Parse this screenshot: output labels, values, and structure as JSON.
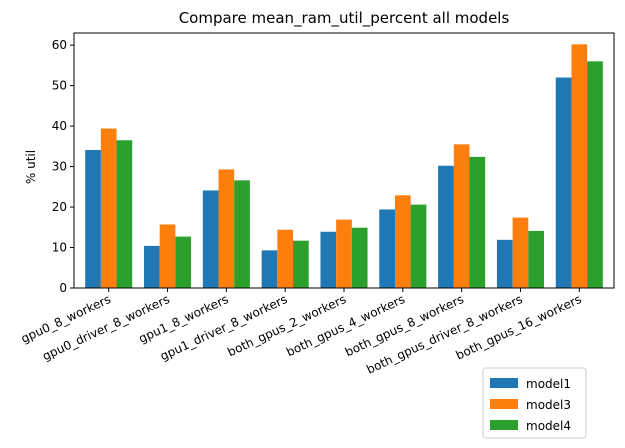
{
  "chart_data": {
    "type": "bar",
    "title": "Compare mean_ram_util_percent all models",
    "xlabel": "",
    "ylabel": "% util",
    "ylim": [
      0,
      63
    ],
    "yticks": [
      0,
      10,
      20,
      30,
      40,
      50,
      60
    ],
    "grid": false,
    "legend_placement": "bottom-right, below plot",
    "categories": [
      "gpu0_8_workers",
      "gpu0_driver_8_workers",
      "gpu1_8_workers",
      "gpu1_driver_8_workers",
      "both_gpus_2_workers",
      "both_gpus_4_workers",
      "both_gpus_8_workers",
      "both_gpus_driver_8_workers",
      "both_gpus_16_workers"
    ],
    "series": [
      {
        "name": "model1",
        "color": "#1f77b4",
        "values": [
          34.1,
          10.4,
          24.1,
          9.3,
          13.9,
          19.4,
          30.2,
          11.9,
          52.0
        ]
      },
      {
        "name": "model3",
        "color": "#ff7f0e",
        "values": [
          39.4,
          15.7,
          29.3,
          14.4,
          16.9,
          22.9,
          35.5,
          17.4,
          60.2
        ]
      },
      {
        "name": "model4",
        "color": "#2ca02c",
        "values": [
          36.5,
          12.7,
          26.6,
          11.7,
          14.9,
          20.6,
          32.4,
          14.1,
          56.0
        ]
      }
    ]
  }
}
